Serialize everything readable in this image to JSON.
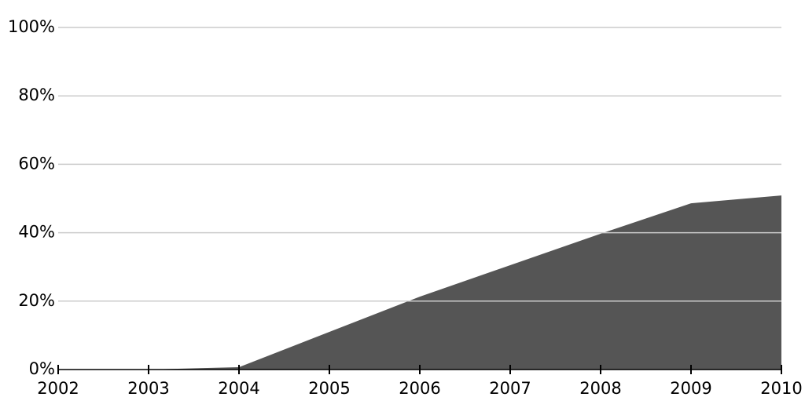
{
  "chart_data": {
    "type": "area",
    "x": [
      2002,
      2003,
      2004,
      2005,
      2006,
      2007,
      2008,
      2009,
      2010
    ],
    "values": [
      0,
      0,
      0.7,
      11,
      21.3,
      30.5,
      39.7,
      48.6,
      50.9
    ],
    "color": "#555555",
    "xlim": [
      2002,
      2010
    ],
    "xticks": [
      2002,
      2003,
      2004,
      2005,
      2006,
      2007,
      2008,
      2009,
      2010
    ],
    "ylim": [
      0,
      100
    ],
    "yticks": [
      {
        "value": 0,
        "label": "0%"
      },
      {
        "value": 20,
        "label": "20%"
      },
      {
        "value": 40,
        "label": "40%"
      },
      {
        "value": 60,
        "label": "60%"
      },
      {
        "value": 80,
        "label": "80%"
      },
      {
        "value": 100,
        "label": "100%"
      }
    ],
    "grid": true
  }
}
